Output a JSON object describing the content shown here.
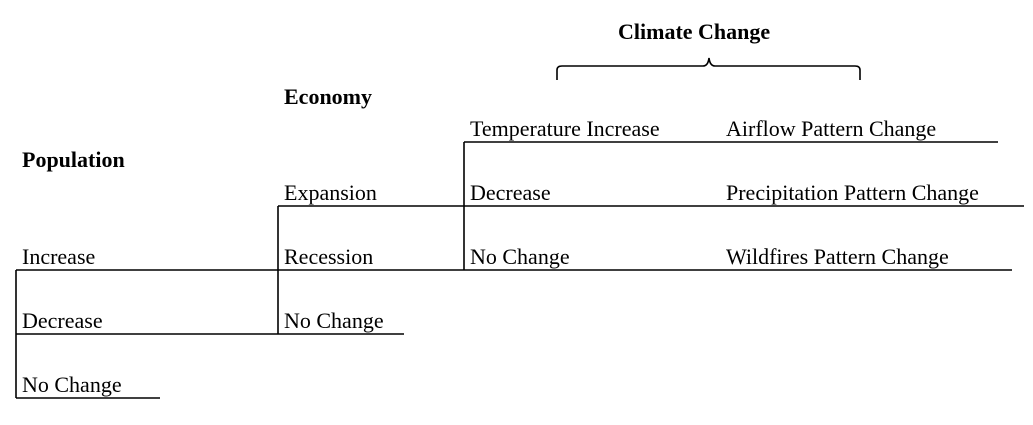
{
  "headings": {
    "climate": "Climate Change",
    "economy": "Economy",
    "population": "Population"
  },
  "climate": {
    "col1": [
      "Temperature Increase",
      "Decrease",
      "No Change"
    ],
    "col2": [
      "Airflow Pattern Change",
      "Precipitation Pattern Change",
      "Wildfires Pattern Change"
    ]
  },
  "economy": [
    "Expansion",
    "Recession",
    "No Change"
  ],
  "population": [
    "Increase",
    "Decrease",
    "No Change"
  ]
}
